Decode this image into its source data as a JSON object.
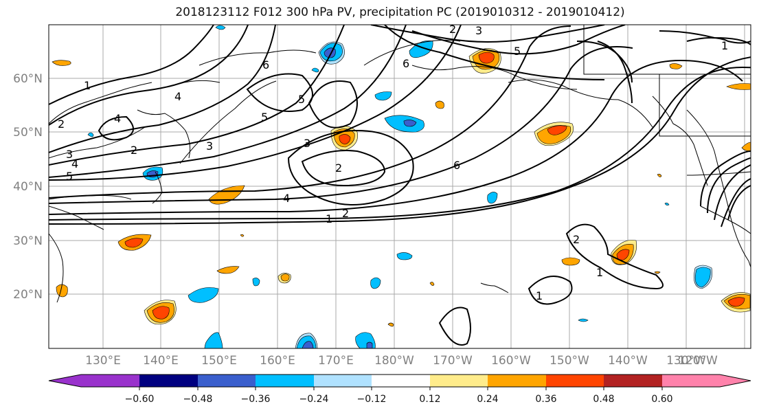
{
  "title": "2018123112 F012 300 hPa PV, precipitation PC (2019010312 - 2019010412)",
  "map": {
    "lat_ticks": [
      "60°N",
      "50°N",
      "40°N",
      "30°N",
      "20°N"
    ],
    "lon_ticks": [
      "130°E",
      "140°E",
      "150°E",
      "160°E",
      "170°E",
      "180°W",
      "170°W",
      "160°W",
      "150°W",
      "140°W",
      "130°W",
      "120°W"
    ]
  },
  "contour_labels": [
    "1",
    "2",
    "3",
    "4",
    "5",
    "6",
    "4",
    "5",
    "6",
    "5",
    "3",
    "2",
    "2",
    "4",
    "1",
    "2",
    "3",
    "5",
    "6",
    "1",
    "2",
    "1",
    "1",
    "4",
    "2",
    "3"
  ],
  "colorbar": {
    "colors": [
      "#9932cc",
      "#000080",
      "#3a5fcd",
      "#00bfff",
      "#b0e2ff",
      "#ffffff",
      "#ffec8b",
      "#ffa500",
      "#ff4500",
      "#b22222",
      "#ff82ab"
    ],
    "labels": [
      "−0.60",
      "−0.48",
      "−0.36",
      "−0.24",
      "−0.12",
      "0.12",
      "0.24",
      "0.36",
      "0.48",
      "0.60"
    ]
  }
}
